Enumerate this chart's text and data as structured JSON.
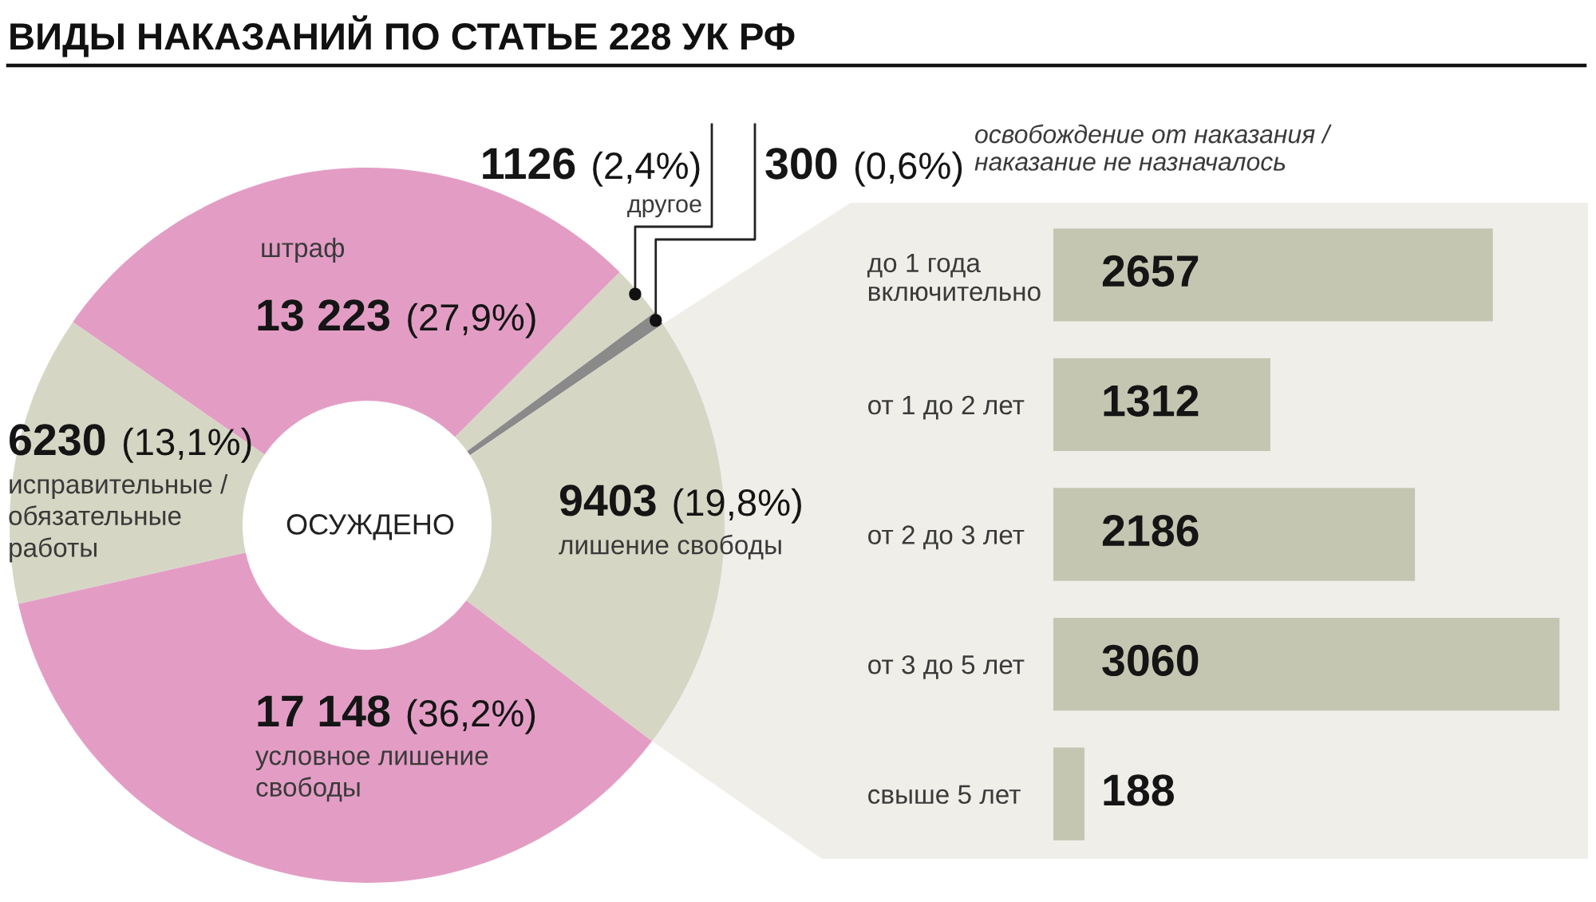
{
  "chart_data": [
    {
      "type": "donut",
      "title": "ВИДЫ НАКАЗАНИЙ ПО СТАТЬЕ 228 УК РФ",
      "categories": [
        "штраф",
        "другое",
        "освобождение от наказания /\nнаказание не назначалось",
        "лишение свободы",
        "условное лишение\nсвободы",
        "исправительные /\nобязательные\nработы"
      ],
      "values": [
        13223,
        1126,
        300,
        9403,
        17148,
        6230
      ],
      "colors": [
        "#e39dc5",
        "#d6d6c4",
        "#8a8a8a",
        "#d6d6c4",
        "#e39dc5",
        "#d6d6c4"
      ],
      "value_labels": [
        "13 223 (27,9%)",
        "1126 (2,4%)",
        "300 (0,6%)",
        "9403 (19,8%)",
        "17 148 (36,2%)",
        "6230 (13,1%)"
      ],
      "annotations": [
        "ОСУЖДЕНО"
      ]
    },
    {
      "type": "bar",
      "orientation": "horizontal",
      "categories": [
        "до 1 года\nвключительно",
        "от 1 до 2 лет",
        "от 2 до 3 лет",
        "от 3 до 5 лет",
        "свыше 5 лет"
      ],
      "values": [
        2657,
        1312,
        2186,
        3060,
        188
      ],
      "color": "#c5c6b1",
      "data_labels": true,
      "tick_labels": "y"
    }
  ]
}
